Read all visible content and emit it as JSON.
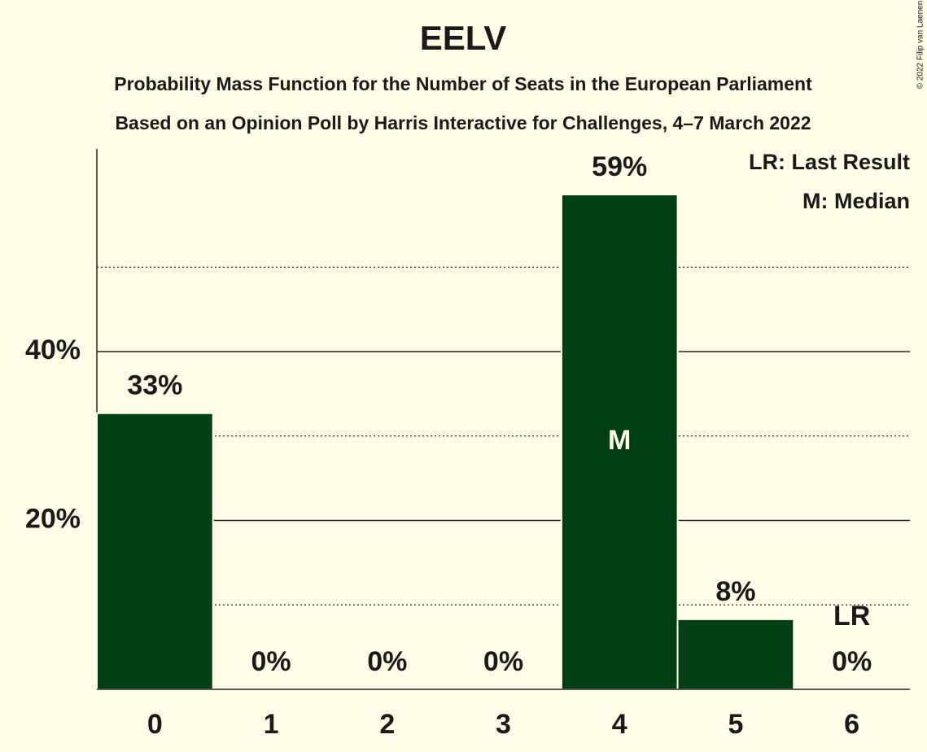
{
  "chart_data": {
    "type": "bar",
    "title": "EELV",
    "subtitle": [
      "Probability Mass Function for the Number of Seats in the European Parliament",
      "Based on an Opinion Poll by Harris Interactive for Challenges, 4–7 March 2022"
    ],
    "copyright": "© 2022 Filip van Laenen",
    "categories": [
      "0",
      "1",
      "2",
      "3",
      "4",
      "5",
      "6"
    ],
    "values": [
      32.7,
      0,
      0,
      0,
      58.6,
      8.3,
      0
    ],
    "value_labels": [
      "33%",
      "0%",
      "0%",
      "0%",
      "59%",
      "8%",
      "0%"
    ],
    "color": "#003f12",
    "ylim": [
      0,
      64
    ],
    "yticks": [
      {
        "value": 20,
        "label": "20%"
      },
      {
        "value": 40,
        "label": "40%"
      }
    ],
    "minor_yticks": [
      10,
      30,
      50
    ],
    "grid": true,
    "median": 4,
    "median_label": "M",
    "last_result": 6,
    "last_result_label": "LR",
    "legend": [
      "LR: Last Result",
      "M: Median"
    ],
    "legend_position": "top-right"
  }
}
